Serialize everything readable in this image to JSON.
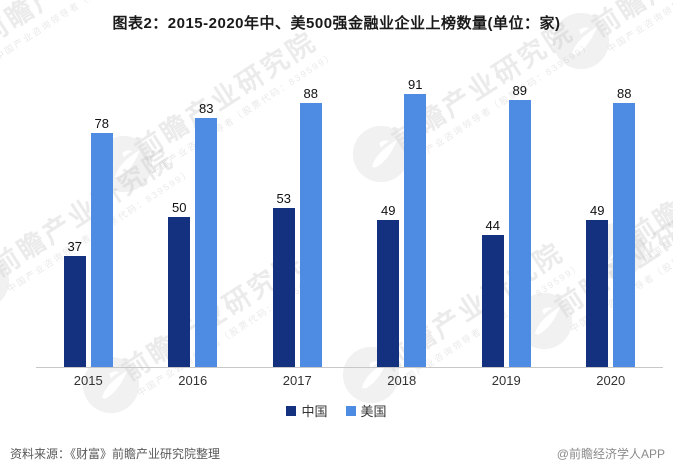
{
  "title": "图表2：2015-2020年中、美500强金融业企业上榜数量(单位：家)",
  "chart_data": {
    "type": "bar",
    "title": "图表2：2015-2020年中、美500强金融业企业上榜数量(单位：家)",
    "categories": [
      "2015",
      "2016",
      "2017",
      "2018",
      "2019",
      "2020"
    ],
    "series": [
      {
        "name": "中国",
        "color": "#13317e",
        "values": [
          37,
          50,
          53,
          49,
          44,
          49
        ]
      },
      {
        "name": "美国",
        "color": "#4e8ce4",
        "values": [
          78,
          83,
          88,
          91,
          89,
          88
        ]
      }
    ],
    "xlabel": "",
    "ylabel": "",
    "ylim": [
      0,
      100
    ],
    "grid": false,
    "legend_position": "bottom",
    "value_labels": true
  },
  "footer": {
    "source": "资料来源：《财富》前瞻产业研究院整理",
    "credit": "@前瞻经济学人APP"
  },
  "watermark": {
    "text": "前瞻产业研究院",
    "subtext": "中国产业咨询领导者（股票代码：839599）"
  }
}
